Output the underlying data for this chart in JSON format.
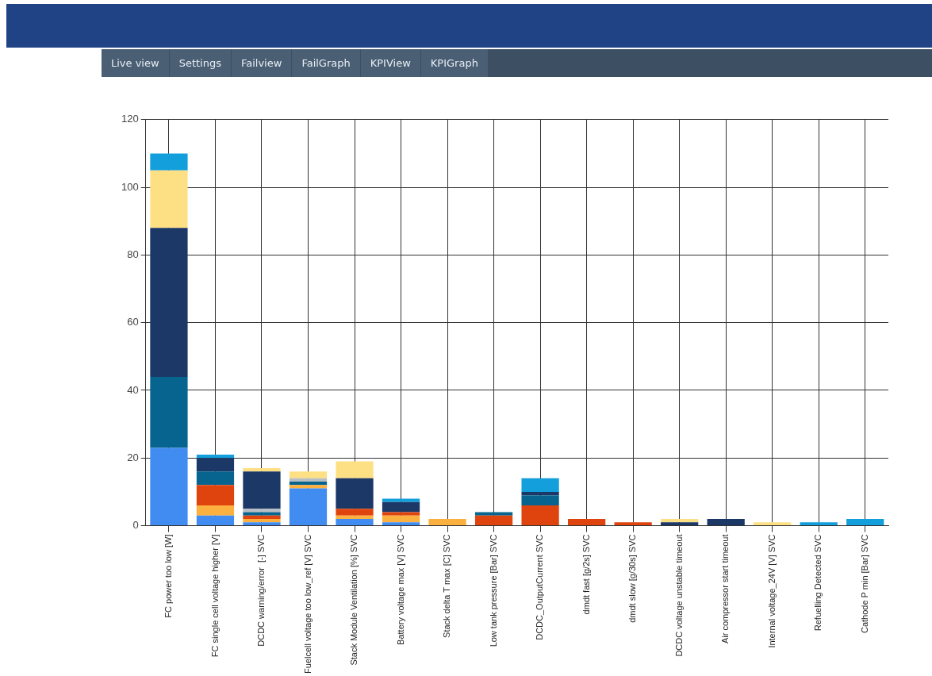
{
  "chart_data": {
    "type": "bar",
    "stacked": true,
    "grid": true,
    "legend": false,
    "annotations": [
      "Live view",
      "Settings",
      "Failview",
      "FailGraph",
      "KPIView",
      "KPIGraph"
    ],
    "categories": [
      "FC power too low [W]",
      "FC single cell voltage higher [V]",
      "DCDC warning/error  [-] SVC",
      "Fuelcell voltage too low_ref [V] SVC",
      "Stack Module Ventilation [%] SVC",
      "Battery voltage max [V] SVC",
      "Stack delta T max [C] SVC",
      "Low tank pressure [Bar] SVC",
      "DCDC_OutputCurrent SVC",
      "dmdt fast [g/2s] SVC",
      "dmdt slow [g/30s] SVC",
      "DCDC voltage unstable timeout",
      "Air compressor start timeout",
      "Internal voltage_24V [V] SVC",
      "Refuelling Detected SVC",
      "Cathode P min [Bar] SVC"
    ],
    "ylim": [
      0,
      120
    ],
    "yticks": [
      0,
      20,
      40,
      60,
      80,
      100,
      120
    ],
    "series": [
      {
        "color": "#418cf0",
        "values": [
          23,
          3,
          1,
          11,
          2,
          1,
          null,
          null,
          null,
          null,
          null,
          null,
          null,
          null,
          null,
          null
        ]
      },
      {
        "color": "#fbb040",
        "values": [
          null,
          3,
          1,
          1,
          1,
          2,
          2,
          null,
          null,
          null,
          null,
          null,
          null,
          null,
          null,
          null
        ]
      },
      {
        "color": "#e0440e",
        "values": [
          null,
          6,
          1,
          null,
          2,
          1,
          null,
          3,
          6,
          2,
          1,
          null,
          null,
          null,
          null,
          null
        ]
      },
      {
        "color": "#06648f",
        "values": [
          21,
          4,
          1,
          1,
          null,
          null,
          null,
          1,
          3,
          null,
          null,
          null,
          null,
          null,
          null,
          null
        ]
      },
      {
        "color": "#b8bec4",
        "values": [
          null,
          null,
          1,
          1,
          null,
          null,
          null,
          null,
          null,
          null,
          null,
          null,
          null,
          null,
          null,
          null
        ]
      },
      {
        "color": "#1b3866",
        "values": [
          44,
          4,
          11,
          null,
          9,
          3,
          null,
          null,
          1,
          null,
          null,
          1,
          2,
          null,
          null,
          null
        ]
      },
      {
        "color": "#fee084",
        "values": [
          17,
          null,
          1,
          2,
          5,
          null,
          null,
          null,
          null,
          null,
          null,
          1,
          null,
          1,
          null,
          null
        ]
      },
      {
        "color": "#139fdc",
        "values": [
          5,
          1,
          null,
          null,
          null,
          1,
          null,
          null,
          4,
          null,
          null,
          null,
          null,
          null,
          1,
          2
        ]
      }
    ]
  }
}
